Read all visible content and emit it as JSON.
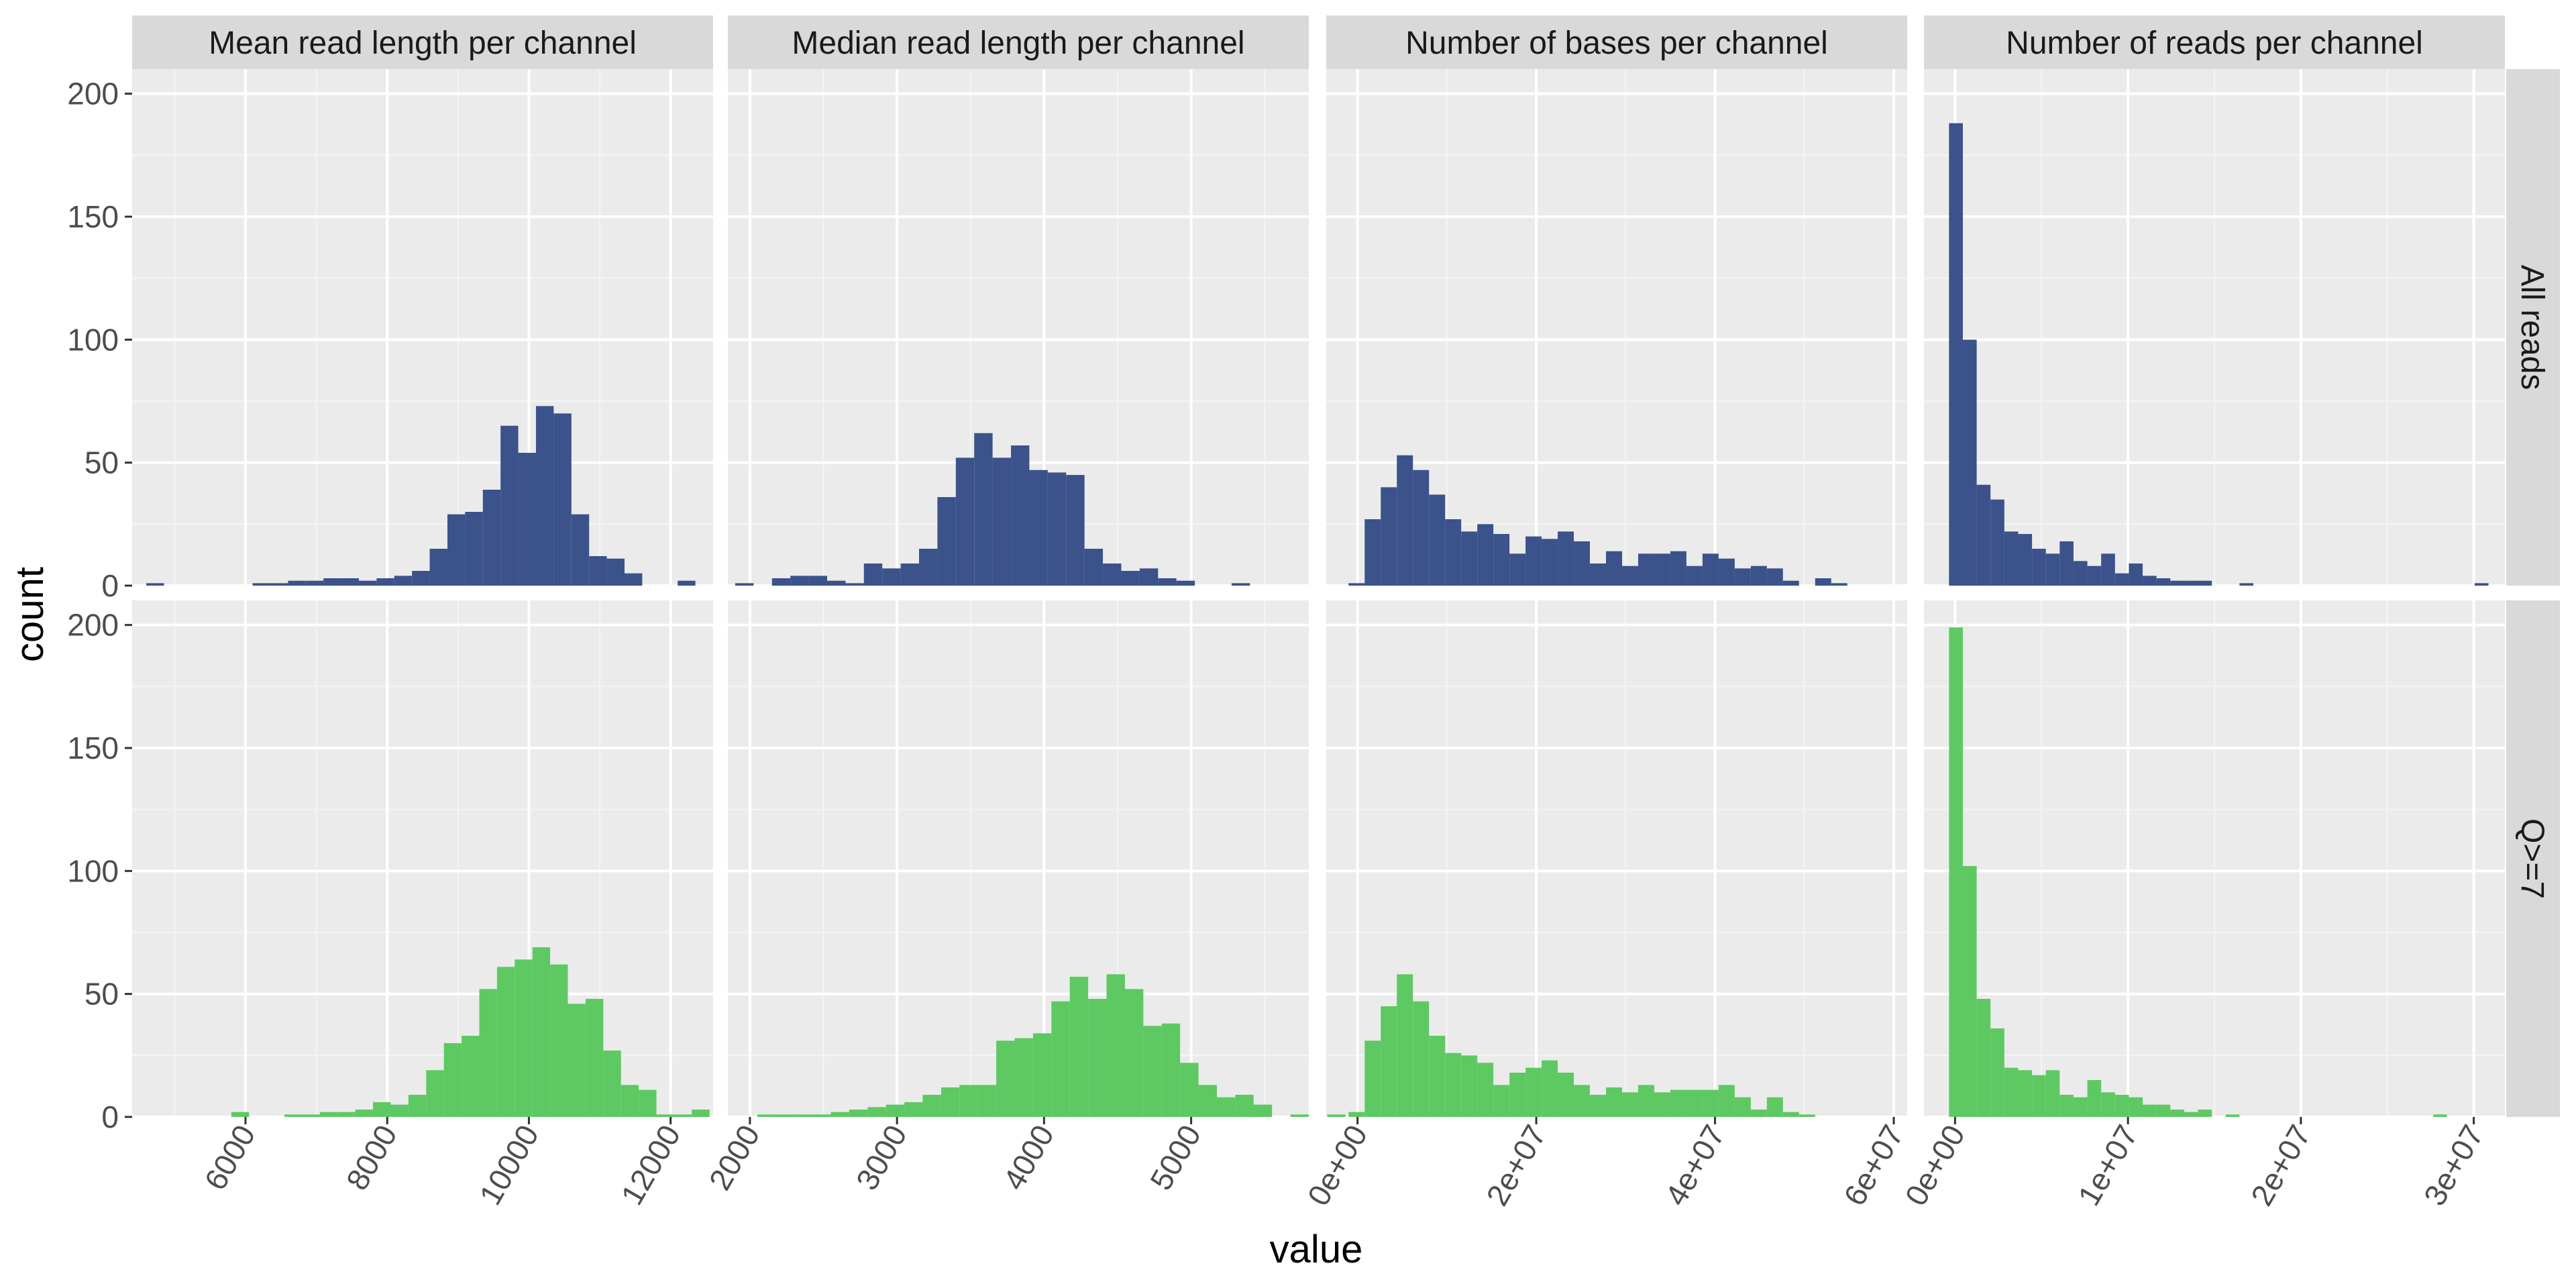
{
  "chart_data": {
    "type": "bar",
    "xlabel": "value",
    "ylabel": "count",
    "ylim": [
      0,
      210
    ],
    "yticks": [
      0,
      50,
      100,
      150,
      200
    ],
    "grid": true,
    "legend": "none",
    "colors": {
      "All reads": "#3b528b",
      "Q>=7": "#5ec962"
    },
    "columns": [
      {
        "title": "Mean read length per channel",
        "xlim": [
          4400,
          12600
        ],
        "xticks": [
          6000,
          8000,
          10000,
          12000
        ],
        "xtick_labels": [
          "6000",
          "8000",
          "10000",
          "12000"
        ]
      },
      {
        "title": "Median read length per channel",
        "xlim": [
          1850,
          5800
        ],
        "xticks": [
          2000,
          3000,
          4000,
          5000
        ],
        "xtick_labels": [
          "2000",
          "3000",
          "4000",
          "5000"
        ]
      },
      {
        "title": "Number of bases per channel",
        "xlim": [
          -3500000,
          61500000
        ],
        "xticks": [
          0,
          20000000,
          40000000,
          60000000
        ],
        "xtick_labels": [
          "0e+00",
          "2e+07",
          "4e+07",
          "6e+07"
        ]
      },
      {
        "title": "Number of reads per channel",
        "xlim": [
          -1800000,
          31800000
        ],
        "xticks": [
          0,
          10000000,
          20000000,
          30000000
        ],
        "xtick_labels": [
          "0e+00",
          "1e+07",
          "2e+07",
          "3e+07"
        ]
      }
    ],
    "rows": [
      {
        "label": "All reads",
        "color": "#3b528b"
      },
      {
        "label": "Q>=7",
        "color": "#5ec962"
      }
    ],
    "panels": [
      {
        "row": 0,
        "col": 0,
        "bin_start": 4600,
        "bin_width": 250,
        "counts": [
          1,
          0,
          0,
          0,
          0,
          0,
          1,
          1,
          2,
          2,
          3,
          3,
          2,
          3,
          4,
          6,
          15,
          29,
          30,
          39,
          65,
          54,
          73,
          70,
          29,
          12,
          11,
          5,
          0,
          0,
          2
        ]
      },
      {
        "row": 0,
        "col": 1,
        "bin_start": 1900,
        "bin_width": 125,
        "counts": [
          1,
          0,
          3,
          4,
          4,
          2,
          1,
          9,
          7,
          9,
          15,
          36,
          52,
          62,
          52,
          57,
          47,
          46,
          45,
          15,
          9,
          6,
          7,
          3,
          2,
          0,
          0,
          1
        ]
      },
      {
        "row": 0,
        "col": 2,
        "bin_start": -1000000,
        "bin_width": 1800000,
        "counts": [
          1,
          27,
          40,
          53,
          47,
          37,
          27,
          22,
          25,
          21,
          13,
          20,
          19,
          22,
          18,
          9,
          14,
          8,
          13,
          13,
          14,
          8,
          13,
          11,
          7,
          8,
          7,
          2,
          0,
          3,
          1
        ]
      },
      {
        "row": 0,
        "col": 3,
        "bin_start": -350000,
        "bin_width": 800000,
        "counts": [
          188,
          100,
          41,
          35,
          22,
          21,
          15,
          13,
          18,
          10,
          8,
          13,
          5,
          9,
          4,
          3,
          2,
          2,
          2,
          0,
          0,
          1,
          0,
          0,
          0,
          0,
          0,
          0,
          0,
          0,
          0,
          0,
          0,
          0,
          0,
          0,
          0,
          0,
          1
        ]
      },
      {
        "row": 1,
        "col": 0,
        "bin_start": 5800,
        "bin_width": 250,
        "counts": [
          2,
          0,
          0,
          1,
          1,
          2,
          2,
          3,
          6,
          5,
          9,
          19,
          30,
          33,
          52,
          61,
          64,
          69,
          62,
          46,
          48,
          27,
          13,
          11,
          1,
          1,
          3
        ]
      },
      {
        "row": 1,
        "col": 1,
        "bin_start": 2050,
        "bin_width": 125,
        "counts": [
          1,
          1,
          1,
          1,
          2,
          3,
          4,
          5,
          6,
          9,
          12,
          13,
          13,
          31,
          32,
          34,
          47,
          57,
          48,
          58,
          52,
          37,
          38,
          22,
          13,
          8,
          9,
          5,
          0,
          1,
          0,
          1
        ]
      },
      {
        "row": 1,
        "col": 2,
        "bin_start": -1000000,
        "bin_width": 1800000,
        "counts": [
          2,
          31,
          45,
          58,
          47,
          33,
          26,
          25,
          22,
          13,
          18,
          20,
          23,
          18,
          13,
          9,
          12,
          10,
          13,
          10,
          11,
          11,
          11,
          13,
          8,
          3,
          8,
          2,
          1
        ]
      },
      {
        "row": 1,
        "col": 3,
        "bin_start": -350000,
        "bin_width": 800000,
        "counts": [
          199,
          102,
          48,
          36,
          20,
          19,
          17,
          19,
          9,
          8,
          15,
          10,
          9,
          8,
          5,
          5,
          3,
          2,
          3,
          0,
          1,
          0,
          0,
          0,
          0,
          0,
          0,
          0,
          0,
          0,
          0,
          0,
          0,
          0,
          0,
          1
        ]
      }
    ]
  }
}
